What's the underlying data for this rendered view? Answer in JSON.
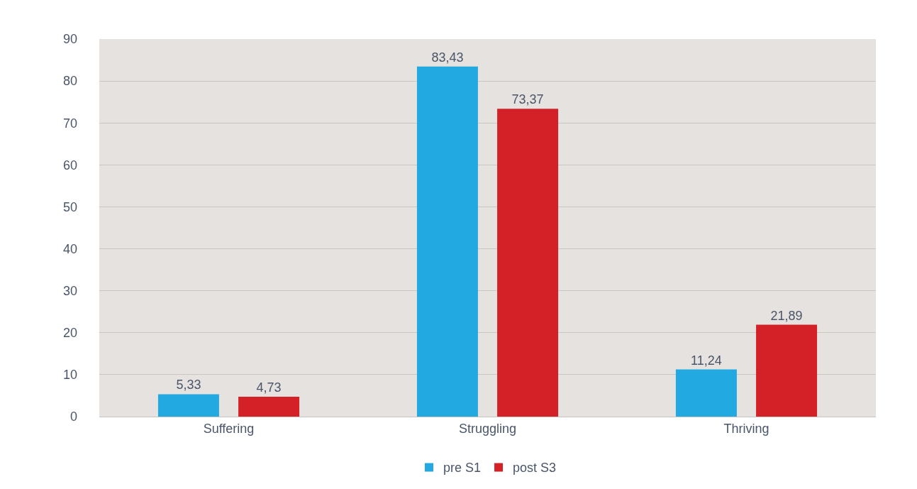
{
  "chart_data": {
    "type": "bar",
    "categories": [
      "Suffering",
      "Struggling",
      "Thriving"
    ],
    "series": [
      {
        "name": "pre S1",
        "color": "#23a9e1",
        "values": [
          5.33,
          83.43,
          11.24
        ],
        "value_labels": [
          "5,33",
          "83,43",
          "11,24"
        ]
      },
      {
        "name": "post S3",
        "color": "#d42027",
        "values": [
          4.73,
          73.37,
          21.89
        ],
        "value_labels": [
          "4,73",
          "73,37",
          "21,89"
        ]
      }
    ],
    "ylim": [
      0,
      90
    ],
    "yticks": [
      0,
      10,
      20,
      30,
      40,
      50,
      60,
      70,
      80,
      90
    ],
    "grid": "y",
    "legend": "bottom"
  }
}
